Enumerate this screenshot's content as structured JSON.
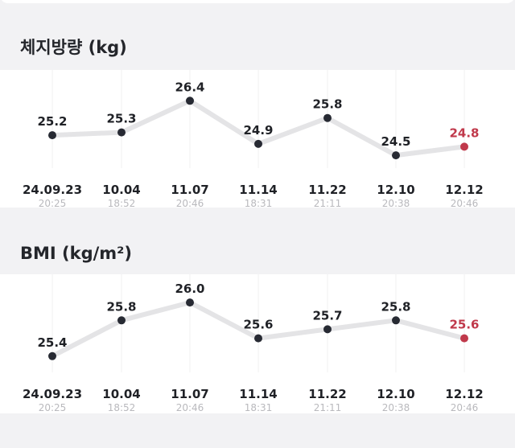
{
  "colors": {
    "line": "#e4e4e6",
    "grid": "#f0f0f2",
    "point": "#272a33",
    "highlight": "#c0394b",
    "value_text": "#1f2126"
  },
  "sections": [
    {
      "title": "체지방량 (kg)",
      "chart_data": {
        "type": "line",
        "title": "체지방량 (kg)",
        "xlabel": "",
        "ylabel": "",
        "grid": "vertical",
        "categories": [
          "24.09.23",
          "10.04",
          "11.07",
          "11.14",
          "11.22",
          "12.10",
          "12.12"
        ],
        "times": [
          "20:25",
          "18:52",
          "20:46",
          "18:31",
          "21:11",
          "20:38",
          "20:46"
        ],
        "series": [
          {
            "values": [
              25.2,
              25.3,
              26.4,
              24.9,
              25.8,
              24.5,
              24.8
            ]
          }
        ],
        "value_labels": [
          "25.2",
          "25.3",
          "26.4",
          "24.9",
          "25.8",
          "24.5",
          "24.8"
        ],
        "highlight_index": 6
      }
    },
    {
      "title": "BMI (kg/m²)",
      "chart_data": {
        "type": "line",
        "title": "BMI (kg/m²)",
        "xlabel": "",
        "ylabel": "",
        "grid": "vertical",
        "categories": [
          "24.09.23",
          "10.04",
          "11.07",
          "11.14",
          "11.22",
          "12.10",
          "12.12"
        ],
        "times": [
          "20:25",
          "18:52",
          "20:46",
          "18:31",
          "21:11",
          "20:38",
          "20:46"
        ],
        "series": [
          {
            "values": [
              25.4,
              25.8,
              26.0,
              25.6,
              25.7,
              25.8,
              25.6
            ]
          }
        ],
        "value_labels": [
          "25.4",
          "25.8",
          "26.0",
          "25.6",
          "25.7",
          "25.8",
          "25.6"
        ],
        "highlight_index": 6
      }
    }
  ]
}
